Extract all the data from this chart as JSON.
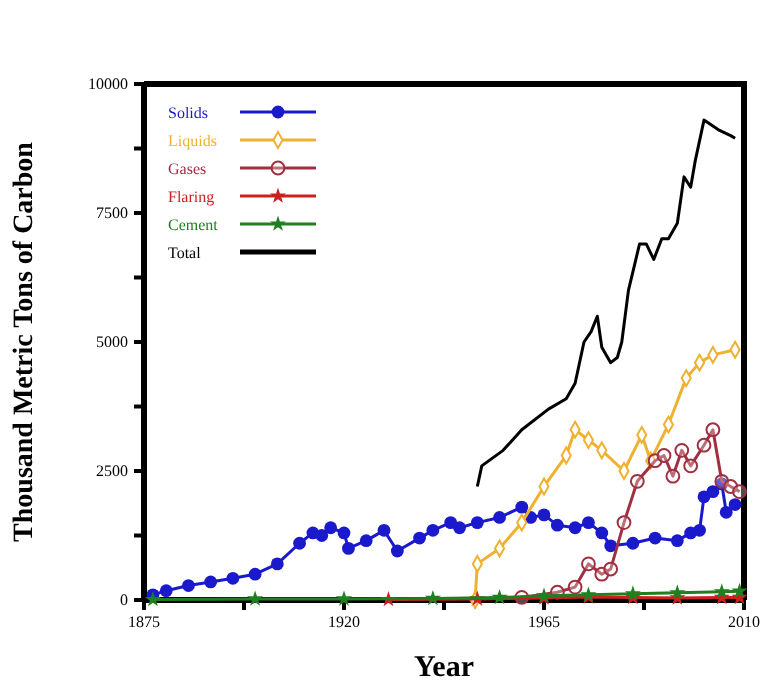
{
  "chart_data": {
    "type": "line",
    "xlabel": "Year",
    "ylabel": "Thousand Metric Tons of Carbon",
    "xlim": [
      1875,
      2010
    ],
    "ylim": [
      0,
      10000
    ],
    "xticks": [
      1875,
      {
        "value": 1897.5,
        "label": null
      },
      1920,
      {
        "value": 1942.5,
        "label": null
      },
      1965,
      {
        "value": 1987.5,
        "label": null
      },
      2010
    ],
    "yticks": [
      0,
      {
        "value": 1250,
        "label": null
      },
      2500,
      {
        "value": 3750,
        "label": null
      },
      5000,
      {
        "value": 6250,
        "label": null
      },
      7500,
      {
        "value": 8750,
        "label": null
      },
      10000
    ],
    "legend": "top left",
    "grid": false,
    "series": [
      {
        "name": "Solids",
        "color": "#1a1acc",
        "marker": "circle",
        "x": [
          1877,
          1880,
          1885,
          1890,
          1895,
          1900,
          1905,
          1910,
          1913,
          1915,
          1917,
          1920,
          1921,
          1925,
          1929,
          1932,
          1937,
          1940,
          1944,
          1946,
          1950,
          1955,
          1960,
          1962,
          1965,
          1968,
          1972,
          1975,
          1978,
          1980,
          1985,
          1990,
          1995,
          1998,
          2000,
          2001,
          2003,
          2005,
          2006,
          2008
        ],
        "values": [
          100,
          180,
          280,
          350,
          420,
          500,
          700,
          1100,
          1300,
          1250,
          1400,
          1300,
          1000,
          1150,
          1350,
          950,
          1200,
          1350,
          1500,
          1400,
          1500,
          1600,
          1800,
          1600,
          1650,
          1450,
          1400,
          1500,
          1300,
          1050,
          1100,
          1200,
          1150,
          1300,
          1350,
          2000,
          2100,
          2250,
          1700,
          1850
        ]
      },
      {
        "name": "Liquids",
        "color": "#f0b030",
        "marker": "diamond",
        "x": [
          1949.5,
          1950,
          1955,
          1960,
          1965,
          1970,
          1972,
          1975,
          1978,
          1983,
          1987,
          1989,
          1993,
          1997,
          2000,
          2003,
          2008
        ],
        "values": [
          0,
          700,
          1000,
          1500,
          2200,
          2800,
          3300,
          3100,
          2900,
          2500,
          3200,
          2700,
          3400,
          4300,
          4600,
          4750,
          4850
        ]
      },
      {
        "name": "Gases",
        "color": "#a03040",
        "marker": "circle-open",
        "x": [
          1960,
          1968,
          1972,
          1975,
          1978,
          1980,
          1983,
          1986,
          1990,
          1992,
          1994,
          1996,
          1998,
          2001,
          2003,
          2005,
          2007,
          2009
        ],
        "values": [
          50,
          150,
          250,
          700,
          500,
          600,
          1500,
          2300,
          2700,
          2800,
          2400,
          2900,
          2600,
          3000,
          3300,
          2300,
          2200,
          2100
        ]
      },
      {
        "name": "Flaring",
        "color": "#cc2020",
        "marker": "star",
        "x": [
          1930,
          1950,
          1965,
          1975,
          1985,
          1995,
          2005,
          2009
        ],
        "values": [
          10,
          20,
          40,
          60,
          50,
          40,
          50,
          50
        ]
      },
      {
        "name": "Cement",
        "color": "#208020",
        "marker": "star",
        "x": [
          1877,
          1900,
          1920,
          1940,
          1955,
          1965,
          1975,
          1985,
          1995,
          2005,
          2009
        ],
        "values": [
          10,
          20,
          20,
          30,
          50,
          80,
          100,
          120,
          140,
          160,
          170
        ]
      },
      {
        "name": "Total",
        "color": "#000000",
        "marker": "none",
        "x": [
          1950,
          1951,
          1955.8,
          1960,
          1966,
          1970,
          1972,
          1974,
          1975.6,
          1977,
          1978,
          1980,
          1981.5,
          1982.5,
          1984,
          1986.5,
          1988,
          1989.7,
          1991.5,
          1993,
          1995,
          1996.5,
          1998,
          1999,
          2001,
          2004.5,
          2007,
          2008
        ],
        "values": [
          2200,
          2600,
          2900,
          3300,
          3700,
          3900,
          4200,
          5000,
          5200,
          5500,
          4900,
          4600,
          4700,
          5000,
          6000,
          6900,
          6900,
          6600,
          7000,
          7000,
          7300,
          8200,
          8000,
          8500,
          9300,
          9100,
          9000,
          8950
        ]
      }
    ]
  }
}
